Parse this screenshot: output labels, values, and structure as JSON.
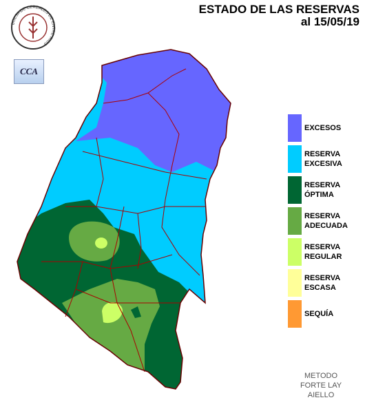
{
  "header": {
    "title": "ESTADO DE LAS RESERVAS",
    "subtitle": "al 15/05/19"
  },
  "logos": {
    "bolsa": "BOLSA DE CEREALES DE ENTRE RIOS",
    "cca": "CCA"
  },
  "legend": {
    "items": [
      {
        "label": "EXCESOS",
        "color": "#6666ff"
      },
      {
        "label": "RESERVA EXCESIVA",
        "color": "#00ccff"
      },
      {
        "label": "RESERVA ÓPTIMA",
        "color": "#006633"
      },
      {
        "label": "RESERVA ADECUADA",
        "color": "#66aa44"
      },
      {
        "label": "RESERVA REGULAR",
        "color": "#ccff66"
      },
      {
        "label": "RESERVA ESCASA",
        "color": "#ffff99"
      },
      {
        "label": "SEQUÍA",
        "color": "#ff9933"
      }
    ]
  },
  "method": "METODO FORTE LAY AIELLO"
}
